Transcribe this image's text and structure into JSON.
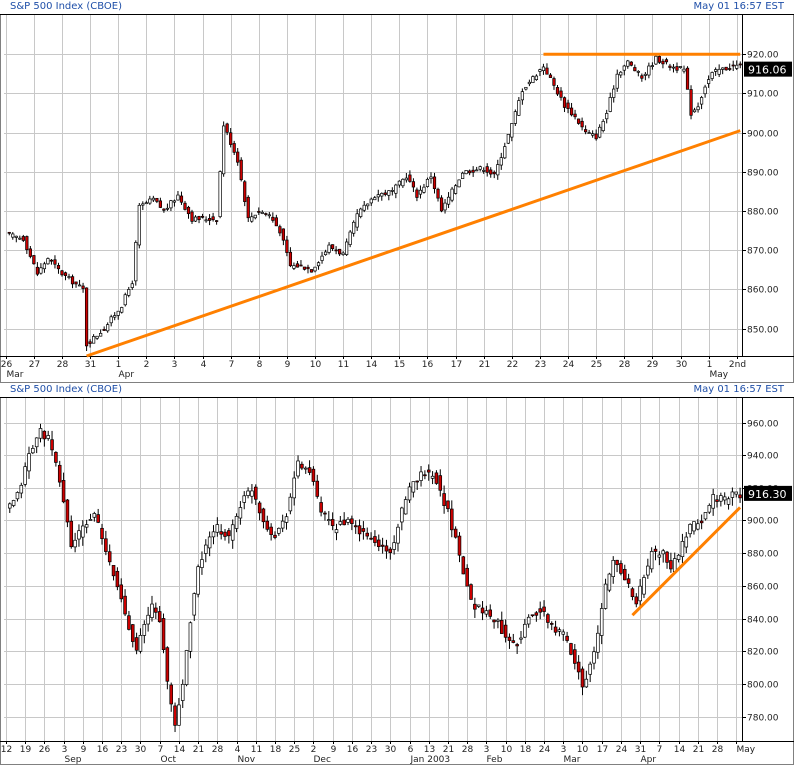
{
  "colors": {
    "up": "#ffffff",
    "down": "#cc0000",
    "outline": "#000000",
    "grid": "#c8c8c8",
    "trend": "#ff8000",
    "header": "#1f4fa8",
    "badge": "#000000"
  },
  "chart_data": [
    {
      "type": "candlestick",
      "title": "S&P 500 Index (CBOE)",
      "timestamp": "May 01 16:57 EST",
      "last_price": "916.06",
      "ylim": [
        843,
        930
      ],
      "yticks": [
        850,
        860,
        870,
        880,
        890,
        900,
        910,
        920
      ],
      "ytick_labels": [
        "850.00",
        "860.00",
        "870.00",
        "880.00",
        "890.00",
        "900.00",
        "910.00",
        "920.00"
      ],
      "xticks": [
        {
          "i": 0,
          "day": "26",
          "month": "Mar"
        },
        {
          "i": 8,
          "day": "27",
          "month": ""
        },
        {
          "i": 16,
          "day": "28",
          "month": ""
        },
        {
          "i": 24,
          "day": "31",
          "month": ""
        },
        {
          "i": 32,
          "day": "1",
          "month": "Apr"
        },
        {
          "i": 40,
          "day": "2",
          "month": ""
        },
        {
          "i": 48,
          "day": "3",
          "month": ""
        },
        {
          "i": 56,
          "day": "4",
          "month": ""
        },
        {
          "i": 64,
          "day": "7",
          "month": ""
        },
        {
          "i": 72,
          "day": "8",
          "month": ""
        },
        {
          "i": 80,
          "day": "9",
          "month": ""
        },
        {
          "i": 88,
          "day": "10",
          "month": ""
        },
        {
          "i": 96,
          "day": "11",
          "month": ""
        },
        {
          "i": 104,
          "day": "14",
          "month": ""
        },
        {
          "i": 112,
          "day": "15",
          "month": ""
        },
        {
          "i": 120,
          "day": "16",
          "month": ""
        },
        {
          "i": 128,
          "day": "17",
          "month": ""
        },
        {
          "i": 136,
          "day": "21",
          "month": ""
        },
        {
          "i": 144,
          "day": "22",
          "month": ""
        },
        {
          "i": 152,
          "day": "23",
          "month": ""
        },
        {
          "i": 160,
          "day": "24",
          "month": ""
        },
        {
          "i": 168,
          "day": "25",
          "month": ""
        },
        {
          "i": 176,
          "day": "28",
          "month": ""
        },
        {
          "i": 184,
          "day": "29",
          "month": ""
        },
        {
          "i": 192,
          "day": "30",
          "month": ""
        },
        {
          "i": 200,
          "day": "1",
          "month": "May"
        },
        {
          "i": 208,
          "day": "2nd",
          "month": ""
        }
      ],
      "anchors": [
        [
          0,
          874
        ],
        [
          5,
          873
        ],
        [
          9,
          864
        ],
        [
          12,
          868
        ],
        [
          14,
          866
        ],
        [
          16,
          864
        ],
        [
          22,
          860
        ],
        [
          23,
          846
        ],
        [
          28,
          850
        ],
        [
          33,
          856
        ],
        [
          36,
          862
        ],
        [
          38,
          881
        ],
        [
          42,
          883
        ],
        [
          45,
          880
        ],
        [
          49,
          884
        ],
        [
          53,
          878
        ],
        [
          56,
          878
        ],
        [
          60,
          878
        ],
        [
          62,
          902
        ],
        [
          66,
          893
        ],
        [
          69,
          878
        ],
        [
          72,
          880
        ],
        [
          75,
          879
        ],
        [
          78,
          875
        ],
        [
          81,
          866
        ],
        [
          84,
          866
        ],
        [
          87,
          865
        ],
        [
          92,
          871
        ],
        [
          96,
          869
        ],
        [
          100,
          879
        ],
        [
          105,
          884
        ],
        [
          110,
          885
        ],
        [
          114,
          889
        ],
        [
          117,
          884
        ],
        [
          121,
          889
        ],
        [
          124,
          880
        ],
        [
          130,
          890
        ],
        [
          136,
          891
        ],
        [
          139,
          889
        ],
        [
          144,
          902
        ],
        [
          147,
          911
        ],
        [
          150,
          914
        ],
        [
          153,
          917
        ],
        [
          156,
          912
        ],
        [
          159,
          907
        ],
        [
          162,
          904
        ],
        [
          165,
          900
        ],
        [
          168,
          899
        ],
        [
          171,
          905
        ],
        [
          174,
          915
        ],
        [
          177,
          918
        ],
        [
          181,
          914
        ],
        [
          185,
          919
        ],
        [
          189,
          917
        ],
        [
          193,
          916
        ],
        [
          195,
          905
        ],
        [
          197,
          907
        ],
        [
          199,
          912
        ],
        [
          201,
          915
        ],
        [
          203,
          916
        ]
      ],
      "trendlines": [
        {
          "x1": 23,
          "y1": 843,
          "x2": 209,
          "y2": 900.5
        },
        {
          "x1": 153,
          "y1": 920,
          "x2": 209,
          "y2": 920
        }
      ]
    },
    {
      "type": "candlestick",
      "title": "S&P 500 Index (CBOE)",
      "timestamp": "May 01 16:57 EST",
      "last_price": "916.30",
      "ylim": [
        765,
        975
      ],
      "yticks": [
        780,
        800,
        820,
        840,
        860,
        880,
        900,
        920,
        940,
        960
      ],
      "ytick_labels": [
        "780.00",
        "800.00",
        "820.00",
        "840.00",
        "860.00",
        "880.00",
        "900.00",
        "920.00",
        "940.00",
        "960.00"
      ],
      "xticks": [
        {
          "i": 0,
          "day": "12",
          "month": ""
        },
        {
          "i": 5,
          "day": "19",
          "month": ""
        },
        {
          "i": 10,
          "day": "26",
          "month": ""
        },
        {
          "i": 15,
          "day": "3",
          "month": "Sep"
        },
        {
          "i": 20,
          "day": "9",
          "month": ""
        },
        {
          "i": 25,
          "day": "16",
          "month": ""
        },
        {
          "i": 30,
          "day": "23",
          "month": ""
        },
        {
          "i": 35,
          "day": "30",
          "month": ""
        },
        {
          "i": 40,
          "day": "7",
          "month": "Oct"
        },
        {
          "i": 45,
          "day": "14",
          "month": ""
        },
        {
          "i": 50,
          "day": "21",
          "month": ""
        },
        {
          "i": 55,
          "day": "28",
          "month": ""
        },
        {
          "i": 60,
          "day": "4",
          "month": "Nov"
        },
        {
          "i": 65,
          "day": "11",
          "month": ""
        },
        {
          "i": 70,
          "day": "18",
          "month": ""
        },
        {
          "i": 75,
          "day": "25",
          "month": ""
        },
        {
          "i": 80,
          "day": "2",
          "month": "Dec"
        },
        {
          "i": 85,
          "day": "9",
          "month": ""
        },
        {
          "i": 90,
          "day": "16",
          "month": ""
        },
        {
          "i": 95,
          "day": "23",
          "month": ""
        },
        {
          "i": 100,
          "day": "30",
          "month": ""
        },
        {
          "i": 105,
          "day": "6",
          "month": "Jan 2003"
        },
        {
          "i": 110,
          "day": "13",
          "month": ""
        },
        {
          "i": 115,
          "day": "21",
          "month": ""
        },
        {
          "i": 120,
          "day": "28",
          "month": ""
        },
        {
          "i": 125,
          "day": "3",
          "month": "Feb"
        },
        {
          "i": 130,
          "day": "10",
          "month": ""
        },
        {
          "i": 135,
          "day": "18",
          "month": ""
        },
        {
          "i": 140,
          "day": "24",
          "month": ""
        },
        {
          "i": 145,
          "day": "3",
          "month": "Mar"
        },
        {
          "i": 150,
          "day": "10",
          "month": ""
        },
        {
          "i": 155,
          "day": "17",
          "month": ""
        },
        {
          "i": 160,
          "day": "24",
          "month": ""
        },
        {
          "i": 165,
          "day": "31",
          "month": "Apr"
        },
        {
          "i": 170,
          "day": "7",
          "month": ""
        },
        {
          "i": 175,
          "day": "14",
          "month": ""
        },
        {
          "i": 180,
          "day": "21",
          "month": ""
        },
        {
          "i": 185,
          "day": "28",
          "month": ""
        },
        {
          "i": 190,
          "day": "",
          "month": "May"
        }
      ],
      "anchors": [
        [
          0,
          905
        ],
        [
          3,
          915
        ],
        [
          6,
          940
        ],
        [
          9,
          955
        ],
        [
          11,
          950
        ],
        [
          14,
          925
        ],
        [
          17,
          885
        ],
        [
          20,
          895
        ],
        [
          23,
          905
        ],
        [
          26,
          880
        ],
        [
          29,
          860
        ],
        [
          32,
          835
        ],
        [
          34,
          822
        ],
        [
          36,
          835
        ],
        [
          38,
          848
        ],
        [
          40,
          840
        ],
        [
          42,
          800
        ],
        [
          44,
          775
        ],
        [
          46,
          800
        ],
        [
          48,
          840
        ],
        [
          50,
          870
        ],
        [
          52,
          885
        ],
        [
          55,
          895
        ],
        [
          58,
          890
        ],
        [
          61,
          910
        ],
        [
          64,
          920
        ],
        [
          67,
          900
        ],
        [
          70,
          890
        ],
        [
          73,
          905
        ],
        [
          76,
          935
        ],
        [
          79,
          930
        ],
        [
          82,
          905
        ],
        [
          85,
          895
        ],
        [
          88,
          900
        ],
        [
          91,
          895
        ],
        [
          94,
          890
        ],
        [
          97,
          885
        ],
        [
          100,
          880
        ],
        [
          103,
          905
        ],
        [
          106,
          925
        ],
        [
          109,
          930
        ],
        [
          112,
          925
        ],
        [
          115,
          905
        ],
        [
          118,
          880
        ],
        [
          121,
          850
        ],
        [
          124,
          845
        ],
        [
          127,
          840
        ],
        [
          130,
          830
        ],
        [
          133,
          825
        ],
        [
          136,
          840
        ],
        [
          139,
          845
        ],
        [
          142,
          835
        ],
        [
          145,
          830
        ],
        [
          148,
          815
        ],
        [
          150,
          800
        ],
        [
          152,
          810
        ],
        [
          154,
          830
        ],
        [
          156,
          860
        ],
        [
          158,
          875
        ],
        [
          160,
          870
        ],
        [
          162,
          860
        ],
        [
          164,
          850
        ],
        [
          166,
          865
        ],
        [
          168,
          880
        ],
        [
          171,
          880
        ],
        [
          173,
          870
        ],
        [
          175,
          880
        ],
        [
          178,
          895
        ],
        [
          181,
          900
        ],
        [
          184,
          915
        ],
        [
          187,
          912
        ],
        [
          189,
          916
        ]
      ],
      "trendlines": [
        {
          "x1": 163,
          "y1": 842,
          "x2": 191,
          "y2": 908
        }
      ]
    }
  ]
}
